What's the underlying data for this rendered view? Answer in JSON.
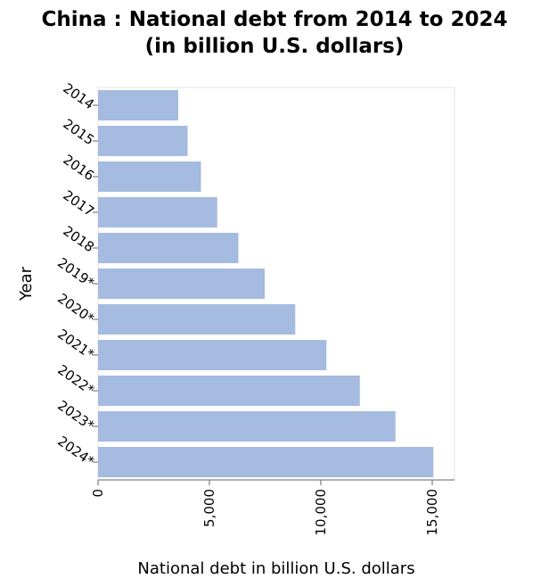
{
  "chart_data": {
    "type": "bar",
    "orientation": "horizontal",
    "title_line1": "China : National debt from 2014 to 2024",
    "title_line2": "(in billion U.S. dollars)",
    "xlabel": "National debt in billion U.S. dollars",
    "ylabel": "Year",
    "categories": [
      "2014",
      "2015",
      "2016",
      "2017",
      "2018",
      "2019*",
      "2020*",
      "2021*",
      "2022*",
      "2023*",
      "2024*"
    ],
    "values": [
      3600,
      4020,
      4620,
      5350,
      6300,
      7480,
      8850,
      10250,
      11750,
      13350,
      15050
    ],
    "xlim": [
      0,
      16000
    ],
    "x_ticks": [
      0,
      5000,
      10000,
      15000
    ],
    "x_tick_labels": [
      "0",
      "5,000",
      "10,000",
      "15,000"
    ],
    "bar_color": "#a5bbdf",
    "grid": false
  }
}
